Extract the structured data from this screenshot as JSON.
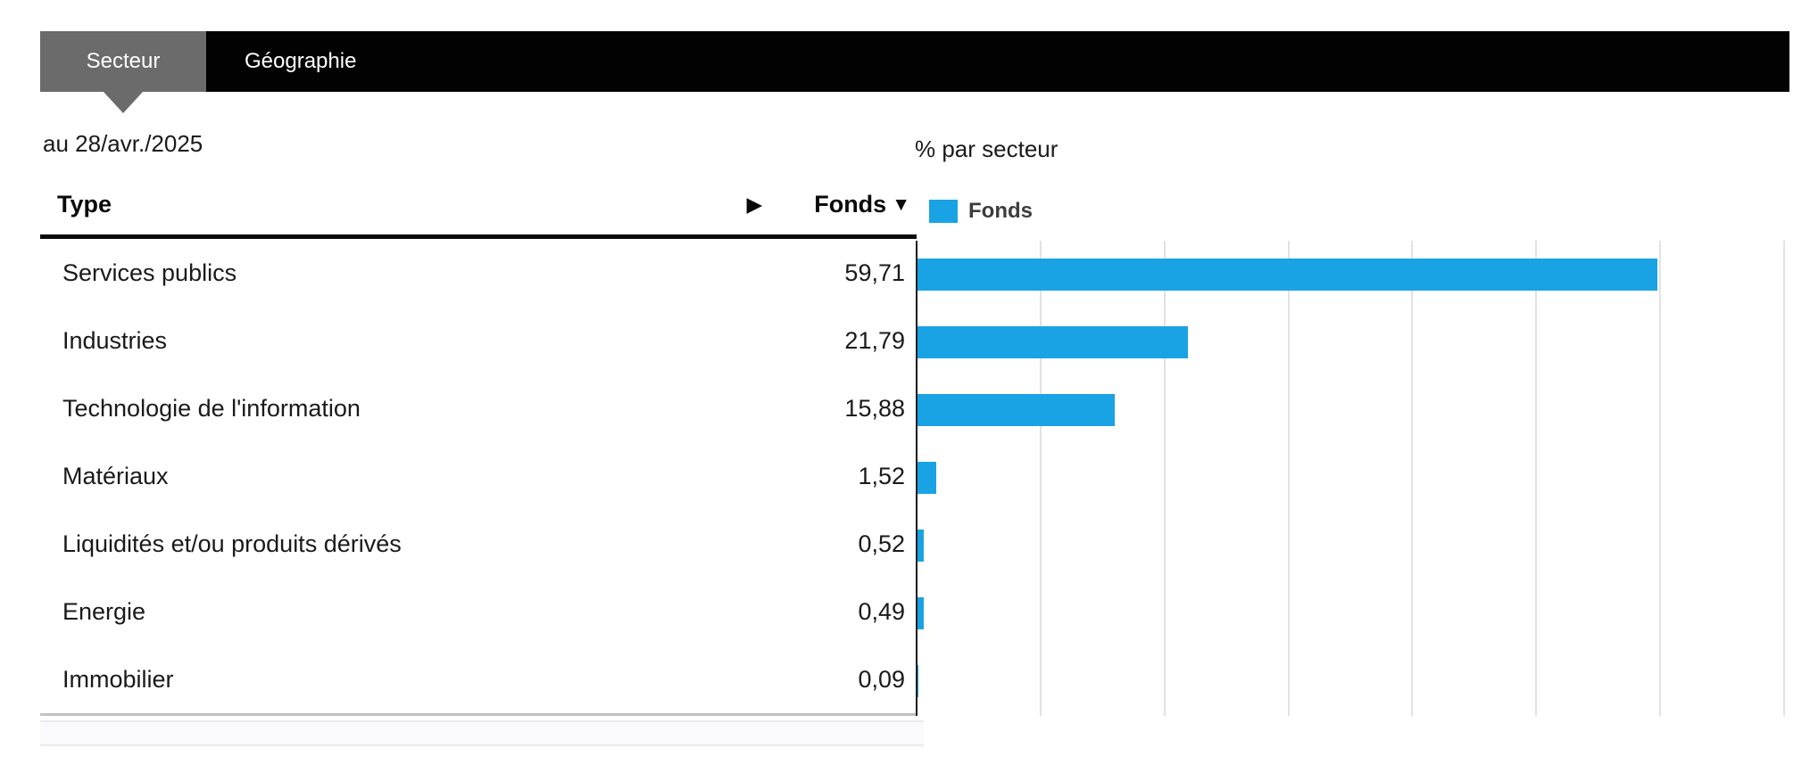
{
  "tabs": {
    "active": {
      "label": "Secteur"
    },
    "inactive": {
      "label": "Géographie"
    }
  },
  "date_label": "au 28/avr./2025",
  "chart_title": "% par secteur",
  "table": {
    "columns": {
      "type": "Type",
      "fonds": "Fonds"
    },
    "expand_arrow": "▶",
    "sort_arrow": "▼",
    "rows": [
      {
        "label": "Services publics",
        "value": "59,71"
      },
      {
        "label": "Industries",
        "value": "21,79"
      },
      {
        "label": "Technologie de l'information",
        "value": "15,88"
      },
      {
        "label": "Matériaux",
        "value": "1,52"
      },
      {
        "label": "Liquidités et/ou produits dérivés",
        "value": "0,52"
      },
      {
        "label": "Energie",
        "value": "0,49"
      },
      {
        "label": "Immobilier",
        "value": "0,09"
      }
    ]
  },
  "legend": {
    "label": "Fonds",
    "color": "#19a3e4"
  },
  "chart_data": {
    "type": "bar",
    "orientation": "horizontal",
    "title": "% par secteur",
    "series": [
      {
        "name": "Fonds",
        "values": [
          59.71,
          21.79,
          15.88,
          1.52,
          0.52,
          0.49,
          0.09
        ]
      }
    ],
    "categories": [
      "Services publics",
      "Industries",
      "Technologie de l'information",
      "Matériaux",
      "Liquidités et/ou produits dérivés",
      "Energie",
      "Immobilier"
    ],
    "xlim": [
      0,
      70
    ],
    "gridline_interval": 10,
    "grid": true,
    "bar_color": "#19a3e4",
    "legend_position": "top-left",
    "value_date": "28/avr./2025"
  },
  "colors": {
    "tab_active_bg": "#6b6b6b",
    "tab_strip_bg": "#020202",
    "bar_blue": "#19a3e4",
    "gridline": "#e2e2e2",
    "header_rule": "#0a0a0a",
    "table_bottom_rule": "#c2c1c4",
    "scroll_track_bg": "#faf9fb"
  }
}
